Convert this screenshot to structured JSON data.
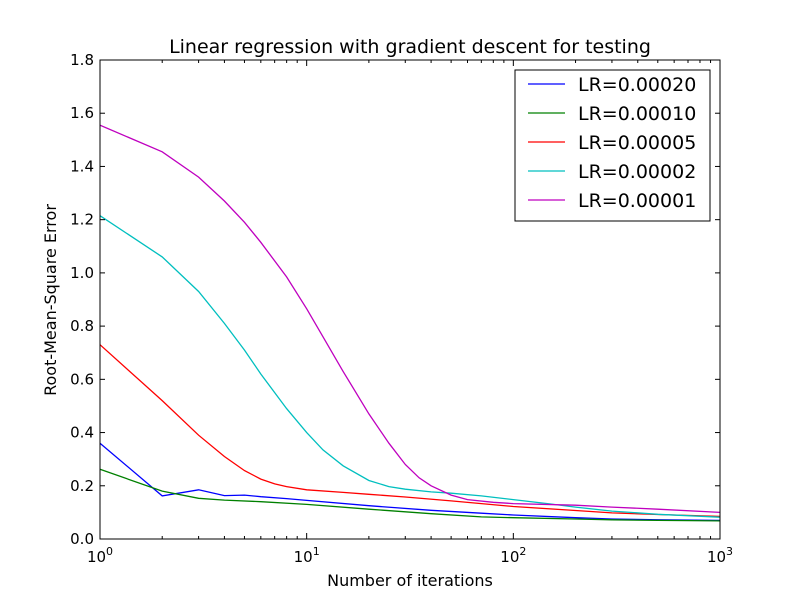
{
  "chart_data": {
    "type": "line",
    "title": "Linear regression with gradient descent for testing",
    "xlabel": "Number of iterations",
    "ylabel": "Root-Mean-Square Error",
    "xscale": "log",
    "xlim": [
      1,
      1000
    ],
    "ylim": [
      0.0,
      1.8
    ],
    "x_ticks": [
      {
        "value": 1,
        "base": "10",
        "exp": "0"
      },
      {
        "value": 10,
        "base": "10",
        "exp": "1"
      },
      {
        "value": 100,
        "base": "10",
        "exp": "2"
      },
      {
        "value": 1000,
        "base": "10",
        "exp": "3"
      }
    ],
    "y_ticks": [
      {
        "value": 0.0,
        "label": "0.0"
      },
      {
        "value": 0.2,
        "label": "0.2"
      },
      {
        "value": 0.4,
        "label": "0.4"
      },
      {
        "value": 0.6,
        "label": "0.6"
      },
      {
        "value": 0.8,
        "label": "0.8"
      },
      {
        "value": 1.0,
        "label": "1.0"
      },
      {
        "value": 1.2,
        "label": "1.2"
      },
      {
        "value": 1.4,
        "label": "1.4"
      },
      {
        "value": 1.6,
        "label": "1.6"
      },
      {
        "value": 1.8,
        "label": "1.8"
      }
    ],
    "grid": false,
    "legend_position": "top-right",
    "series": [
      {
        "name": "LR=0.00020",
        "color": "#0000ff",
        "points": [
          [
            1,
            0.36
          ],
          [
            2,
            0.162
          ],
          [
            3,
            0.185
          ],
          [
            4,
            0.163
          ],
          [
            5,
            0.165
          ],
          [
            6,
            0.159
          ],
          [
            8,
            0.152
          ],
          [
            10,
            0.145
          ],
          [
            20,
            0.125
          ],
          [
            40,
            0.108
          ],
          [
            70,
            0.097
          ],
          [
            100,
            0.09
          ],
          [
            200,
            0.08
          ],
          [
            300,
            0.075
          ],
          [
            500,
            0.072
          ],
          [
            1000,
            0.07
          ]
        ]
      },
      {
        "name": "LR=0.00010",
        "color": "#008000",
        "points": [
          [
            1,
            0.262
          ],
          [
            2,
            0.18
          ],
          [
            3,
            0.153
          ],
          [
            4,
            0.146
          ],
          [
            6,
            0.14
          ],
          [
            10,
            0.13
          ],
          [
            20,
            0.112
          ],
          [
            40,
            0.095
          ],
          [
            70,
            0.083
          ],
          [
            100,
            0.08
          ],
          [
            200,
            0.075
          ],
          [
            300,
            0.072
          ],
          [
            500,
            0.07
          ],
          [
            1000,
            0.068
          ]
        ]
      },
      {
        "name": "LR=0.00005",
        "color": "#ff0000",
        "points": [
          [
            1,
            0.73
          ],
          [
            2,
            0.52
          ],
          [
            3,
            0.39
          ],
          [
            4,
            0.31
          ],
          [
            5,
            0.257
          ],
          [
            6,
            0.225
          ],
          [
            7,
            0.207
          ],
          [
            8,
            0.197
          ],
          [
            10,
            0.185
          ],
          [
            15,
            0.175
          ],
          [
            20,
            0.168
          ],
          [
            30,
            0.158
          ],
          [
            50,
            0.143
          ],
          [
            100,
            0.122
          ],
          [
            200,
            0.107
          ],
          [
            300,
            0.098
          ],
          [
            500,
            0.092
          ],
          [
            1000,
            0.085
          ]
        ]
      },
      {
        "name": "LR=0.00002",
        "color": "#00bfbf",
        "points": [
          [
            1,
            1.215
          ],
          [
            2,
            1.06
          ],
          [
            3,
            0.93
          ],
          [
            4,
            0.81
          ],
          [
            5,
            0.71
          ],
          [
            6,
            0.62
          ],
          [
            8,
            0.49
          ],
          [
            10,
            0.4
          ],
          [
            12,
            0.335
          ],
          [
            15,
            0.275
          ],
          [
            20,
            0.22
          ],
          [
            25,
            0.197
          ],
          [
            30,
            0.187
          ],
          [
            40,
            0.177
          ],
          [
            50,
            0.172
          ],
          [
            70,
            0.162
          ],
          [
            100,
            0.148
          ],
          [
            150,
            0.132
          ],
          [
            200,
            0.12
          ],
          [
            300,
            0.105
          ],
          [
            500,
            0.093
          ],
          [
            1000,
            0.082
          ]
        ]
      },
      {
        "name": "LR=0.00001",
        "color": "#bf00bf",
        "points": [
          [
            1,
            1.555
          ],
          [
            2,
            1.455
          ],
          [
            3,
            1.36
          ],
          [
            4,
            1.27
          ],
          [
            5,
            1.19
          ],
          [
            6,
            1.115
          ],
          [
            8,
            0.985
          ],
          [
            10,
            0.865
          ],
          [
            12,
            0.76
          ],
          [
            15,
            0.63
          ],
          [
            20,
            0.47
          ],
          [
            25,
            0.36
          ],
          [
            30,
            0.28
          ],
          [
            35,
            0.23
          ],
          [
            40,
            0.2
          ],
          [
            50,
            0.165
          ],
          [
            60,
            0.148
          ],
          [
            80,
            0.138
          ],
          [
            100,
            0.133
          ],
          [
            200,
            0.127
          ],
          [
            300,
            0.12
          ],
          [
            500,
            0.112
          ],
          [
            1000,
            0.1
          ]
        ]
      }
    ]
  }
}
